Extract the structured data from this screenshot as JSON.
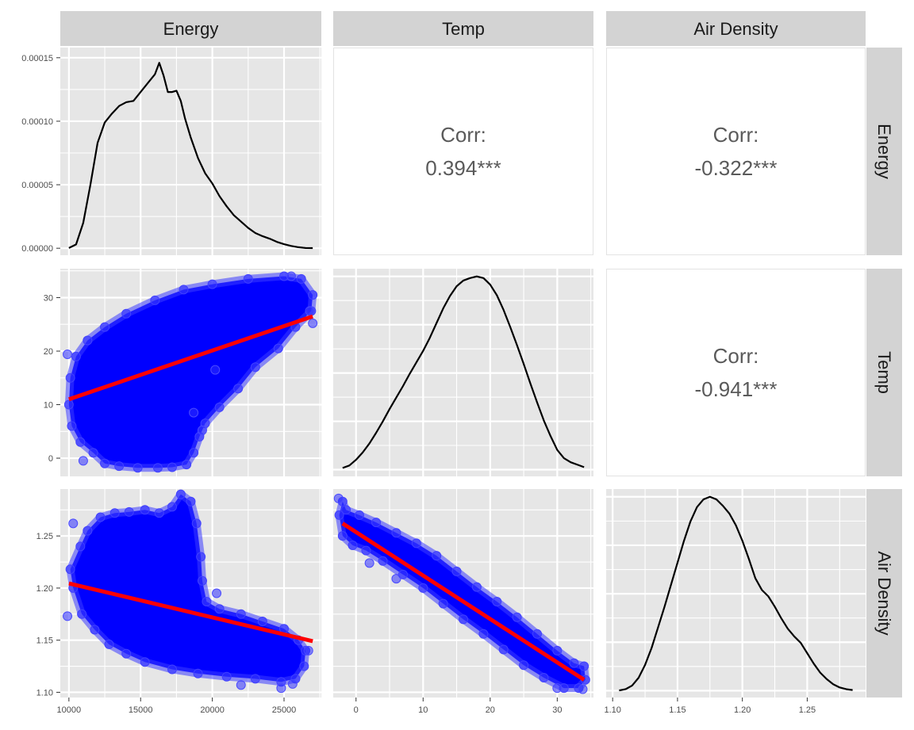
{
  "chart_data": {
    "type": "scatter-matrix",
    "variables": [
      "Energy",
      "Temp",
      "Air Density"
    ],
    "ranges": {
      "Energy": [
        9400,
        27600
      ],
      "Temp": [
        -3.4,
        35.4
      ],
      "Air Density": [
        1.095,
        1.295
      ]
    },
    "density_ylim": [
      -5.5e-06,
      0.000158
    ],
    "grid": true,
    "panel_background": "#e6e6e6",
    "strip_background": "#d3d3d3",
    "point_color": "#0000ff",
    "fit_line_color": "#ff0000",
    "density_line_color": "#000000",
    "ticks": {
      "Energy": {
        "values": [
          10000,
          15000,
          20000,
          25000
        ],
        "labels": [
          "10000",
          "15000",
          "20000",
          "25000"
        ]
      },
      "Temp": {
        "values": [
          0,
          10,
          20,
          30
        ],
        "labels": [
          "0",
          "10",
          "20",
          "30"
        ]
      },
      "Air Density": {
        "values": [
          1.1,
          1.15,
          1.2,
          1.25
        ],
        "labels": [
          "1.10",
          "1.15",
          "1.20",
          "1.25"
        ]
      },
      "density": {
        "values": [
          0,
          5e-05,
          0.0001,
          0.00015
        ],
        "labels": [
          "0.00000",
          "0.00005",
          "0.00010",
          "0.00015"
        ]
      }
    },
    "correlations": [
      {
        "row": "Energy",
        "col": "Temp",
        "label": "Corr:",
        "value": "0.394***"
      },
      {
        "row": "Energy",
        "col": "Air Density",
        "label": "Corr:",
        "value": "-0.322***"
      },
      {
        "row": "Temp",
        "col": "Air Density",
        "label": "Corr:",
        "value": "-0.941***"
      }
    ],
    "densities": {
      "Energy": {
        "x": [
          10000,
          10500,
          11000,
          11500,
          12000,
          12500,
          13000,
          13500,
          14000,
          14500,
          15000,
          15500,
          16000,
          16300,
          16600,
          16900,
          17200,
          17500,
          17800,
          18100,
          18500,
          19000,
          19500,
          20000,
          20500,
          21000,
          21500,
          22000,
          22500,
          23000,
          23500,
          24000,
          24500,
          25000,
          25500,
          26000,
          26500,
          27000
        ],
        "y": [
          2e-07,
          3e-06,
          2e-05,
          5e-05,
          8.3e-05,
          9.9e-05,
          0.000106,
          0.000112,
          0.000115,
          0.000116,
          0.000123,
          0.00013,
          0.000137,
          0.000146,
          0.000136,
          0.000123,
          0.000123,
          0.000124,
          0.000116,
          0.000102,
          8.7e-05,
          7.1e-05,
          5.9e-05,
          5.1e-05,
          4.1e-05,
          3.3e-05,
          2.6e-05,
          2.1e-05,
          1.6e-05,
          1.2e-05,
          9.5e-06,
          7.5e-06,
          5e-06,
          3.2e-06,
          1.8e-06,
          8e-07,
          2e-07,
          1e-07
        ]
      },
      "Temp": {
        "x": [
          -2,
          -1,
          0,
          1,
          2,
          3,
          4,
          5,
          6,
          7,
          8,
          9,
          10,
          11,
          12,
          13,
          14,
          15,
          16,
          17,
          18,
          19,
          20,
          21,
          22,
          23,
          24,
          25,
          26,
          27,
          28,
          29,
          30,
          31,
          32,
          33,
          34
        ],
        "y": [
          0.002,
          0.005,
          0.012,
          0.021,
          0.032,
          0.045,
          0.059,
          0.074,
          0.088,
          0.102,
          0.117,
          0.131,
          0.145,
          0.161,
          0.179,
          0.197,
          0.212,
          0.224,
          0.231,
          0.234,
          0.236,
          0.234,
          0.226,
          0.213,
          0.195,
          0.174,
          0.152,
          0.129,
          0.105,
          0.082,
          0.06,
          0.041,
          0.024,
          0.014,
          0.009,
          0.006,
          0.003
        ]
      },
      "Air Density": {
        "x": [
          1.105,
          1.11,
          1.115,
          1.12,
          1.125,
          1.13,
          1.135,
          1.14,
          1.145,
          1.15,
          1.155,
          1.16,
          1.165,
          1.17,
          1.175,
          1.18,
          1.185,
          1.19,
          1.195,
          1.2,
          1.205,
          1.21,
          1.215,
          1.22,
          1.225,
          1.23,
          1.235,
          1.24,
          1.245,
          1.25,
          1.255,
          1.26,
          1.265,
          1.27,
          1.275,
          1.28,
          1.285
        ],
        "y": [
          0.02,
          0.12,
          0.4,
          1.0,
          2.0,
          3.3,
          4.9,
          6.5,
          8.2,
          9.9,
          11.6,
          13.1,
          14.2,
          14.8,
          15.0,
          14.8,
          14.3,
          13.7,
          12.8,
          11.6,
          10.2,
          8.7,
          7.8,
          7.3,
          6.5,
          5.6,
          4.8,
          4.2,
          3.7,
          2.9,
          2.1,
          1.4,
          0.9,
          0.5,
          0.25,
          0.12,
          0.05
        ]
      }
    },
    "fit_lines": [
      {
        "row": "Temp",
        "col": "Energy",
        "x": [
          10000,
          27000
        ],
        "y": [
          11.0,
          26.5
        ]
      },
      {
        "row": "Air Density",
        "col": "Energy",
        "x": [
          10000,
          27000
        ],
        "y": [
          1.2045,
          1.149
        ]
      },
      {
        "row": "Air Density",
        "col": "Temp",
        "x": [
          -2,
          34
        ],
        "y": [
          1.262,
          1.112
        ]
      }
    ],
    "scatter_regions": [
      {
        "row": "Temp",
        "col": "Energy",
        "outline": [
          [
            10200,
            6
          ],
          [
            10800,
            3
          ],
          [
            11700,
            1
          ],
          [
            12500,
            -1
          ],
          [
            13500,
            -1.5
          ],
          [
            14800,
            -1.8
          ],
          [
            16200,
            -1.8
          ],
          [
            17200,
            -1.7
          ],
          [
            18200,
            -1.2
          ],
          [
            18700,
            1
          ],
          [
            19100,
            4
          ],
          [
            19500,
            6.5
          ],
          [
            20500,
            9.5
          ],
          [
            21800,
            13
          ],
          [
            23000,
            17
          ],
          [
            24600,
            20.5
          ],
          [
            25800,
            24.5
          ],
          [
            26900,
            27.5
          ],
          [
            27000,
            30.5
          ],
          [
            26200,
            33.5
          ],
          [
            25000,
            34
          ],
          [
            22500,
            33.5
          ],
          [
            20000,
            32.5
          ],
          [
            18000,
            31.5
          ],
          [
            16000,
            29.5
          ],
          [
            14000,
            27
          ],
          [
            12500,
            24.5
          ],
          [
            11300,
            22
          ],
          [
            10500,
            19
          ],
          [
            10100,
            15
          ],
          [
            10000,
            10
          ]
        ],
        "stray_points": [
          [
            9900,
            19.4
          ],
          [
            26800,
            27.5
          ],
          [
            27000,
            25.2
          ],
          [
            25500,
            34
          ],
          [
            20200,
            16.5
          ],
          [
            19300,
            5.2
          ],
          [
            11000,
            -0.5
          ],
          [
            18700,
            8.5
          ]
        ]
      },
      {
        "row": "Air Density",
        "col": "Energy",
        "outline": [
          [
            10100,
            1.218
          ],
          [
            10300,
            1.2
          ],
          [
            10900,
            1.175
          ],
          [
            11800,
            1.16
          ],
          [
            12800,
            1.146
          ],
          [
            14000,
            1.137
          ],
          [
            15300,
            1.129
          ],
          [
            17200,
            1.122
          ],
          [
            19000,
            1.118
          ],
          [
            21000,
            1.115
          ],
          [
            23000,
            1.113
          ],
          [
            24800,
            1.11
          ],
          [
            25800,
            1.113
          ],
          [
            26400,
            1.125
          ],
          [
            26500,
            1.14
          ],
          [
            26000,
            1.15
          ],
          [
            25000,
            1.161
          ],
          [
            23500,
            1.168
          ],
          [
            22000,
            1.175
          ],
          [
            20500,
            1.18
          ],
          [
            19600,
            1.187
          ],
          [
            19300,
            1.207
          ],
          [
            19200,
            1.23
          ],
          [
            18900,
            1.262
          ],
          [
            18500,
            1.283
          ],
          [
            17800,
            1.29
          ],
          [
            17200,
            1.278
          ],
          [
            16300,
            1.272
          ],
          [
            15300,
            1.275
          ],
          [
            14200,
            1.273
          ],
          [
            13200,
            1.272
          ],
          [
            12200,
            1.268
          ],
          [
            11300,
            1.255
          ],
          [
            10800,
            1.24
          ]
        ],
        "stray_points": [
          [
            9900,
            1.173
          ],
          [
            24800,
            1.104
          ],
          [
            22000,
            1.107
          ],
          [
            26700,
            1.14
          ],
          [
            20300,
            1.195
          ],
          [
            10300,
            1.262
          ],
          [
            25600,
            1.108
          ]
        ]
      },
      {
        "row": "Air Density",
        "col": "Temp",
        "outline": [
          [
            -2,
            1.283
          ],
          [
            -1.5,
            1.275
          ],
          [
            0.5,
            1.27
          ],
          [
            3,
            1.263
          ],
          [
            6,
            1.253
          ],
          [
            9,
            1.243
          ],
          [
            12,
            1.231
          ],
          [
            15,
            1.216
          ],
          [
            18,
            1.201
          ],
          [
            21,
            1.187
          ],
          [
            24,
            1.172
          ],
          [
            27,
            1.156
          ],
          [
            30,
            1.14
          ],
          [
            32.5,
            1.128
          ],
          [
            34,
            1.125
          ],
          [
            34.2,
            1.112
          ],
          [
            33.2,
            1.104
          ],
          [
            31,
            1.104
          ],
          [
            28,
            1.114
          ],
          [
            25,
            1.126
          ],
          [
            22,
            1.141
          ],
          [
            19,
            1.156
          ],
          [
            16,
            1.17
          ],
          [
            13,
            1.185
          ],
          [
            10,
            1.2
          ],
          [
            7,
            1.213
          ],
          [
            4,
            1.226
          ],
          [
            1.5,
            1.236
          ],
          [
            -0.5,
            1.241
          ],
          [
            -2,
            1.25
          ],
          [
            -2.5,
            1.27
          ]
        ],
        "stray_points": [
          [
            -2.6,
            1.286
          ],
          [
            2,
            1.224
          ],
          [
            33.8,
            1.103
          ],
          [
            30,
            1.104
          ],
          [
            6,
            1.209
          ]
        ]
      }
    ]
  },
  "strips": {
    "columns": [
      "Energy",
      "Temp",
      "Air Density"
    ],
    "rows": [
      "Energy",
      "Temp",
      "Air Density"
    ]
  }
}
